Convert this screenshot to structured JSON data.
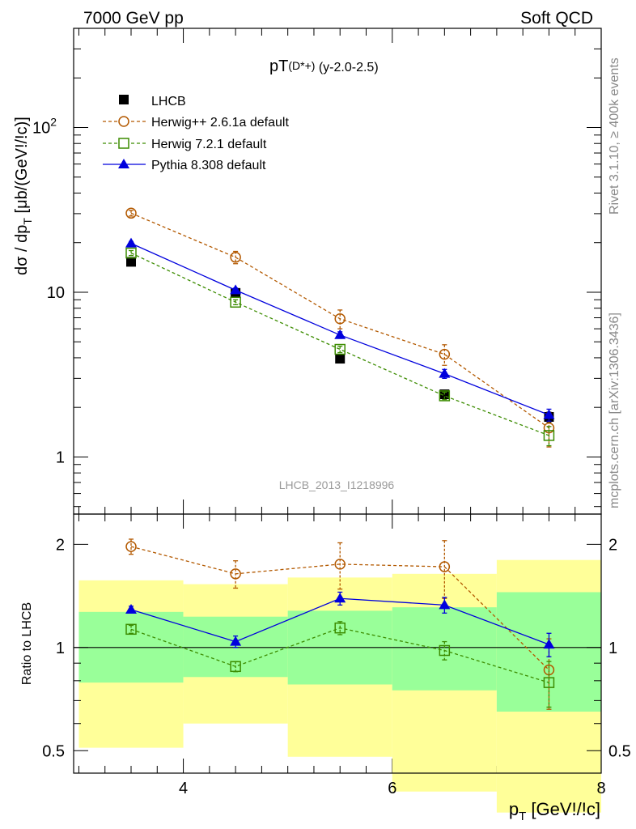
{
  "header": {
    "left": "7000 GeV pp",
    "right": "Soft QCD"
  },
  "side_text": {
    "rivet": "Rivet 3.1.10, ≥ 400k events",
    "source": "mcplots.cern.ch [arXiv:1306.3436]"
  },
  "watermark": "LHCB_2013_I1218996",
  "colors": {
    "lhcb": "#000000",
    "herwigpp": "#b35900",
    "herwig7": "#3c8c00",
    "pythia": "#0000dd",
    "band_outer": "#ffff99",
    "band_inner": "#99ff99"
  },
  "chart_data": [
    {
      "type": "line",
      "title": "pT(D*+) (y-2.0-2.5)",
      "title_main": "pT",
      "title_sub": "(D*+)",
      "title_rest": " (y-2.0-2.5)",
      "ylabel": "dσ / dp_T [μb/(GeV!/!c)]",
      "ylabel_a": "dσ / dp",
      "ylabel_sub": "T",
      "ylabel_b": " [μb/(GeV!/!c)]",
      "yscale": "log",
      "xlim": [
        2.95,
        8.0
      ],
      "ylim": [
        0.45,
        400
      ],
      "yticks": [
        {
          "v": 1,
          "label": "1"
        },
        {
          "v": 10,
          "label": "10"
        },
        {
          "v": 100,
          "label": "10",
          "sup": "2"
        }
      ],
      "legend_position": "top-left",
      "series": [
        {
          "name": "LHCB",
          "key": "lhcb",
          "marker": "square-filled",
          "line": "none",
          "x": [
            3.5,
            4.5,
            5.5,
            6.5,
            7.5
          ],
          "y": [
            15.3,
            9.9,
            3.95,
            2.4,
            1.75
          ],
          "err": [
            0,
            0,
            0,
            0,
            0.12
          ]
        },
        {
          "name": "Herwig++ 2.6.1a default",
          "key": "herwigpp",
          "marker": "circle-open",
          "line": "dashed",
          "x": [
            3.5,
            4.5,
            5.5,
            6.5,
            7.5
          ],
          "y": [
            30.2,
            16.3,
            6.9,
            4.2,
            1.5
          ],
          "err": [
            1.2,
            1.4,
            0.9,
            0.6,
            0.35
          ]
        },
        {
          "name": "Herwig 7.2.1 default",
          "key": "herwig7",
          "marker": "square-open",
          "line": "dashed",
          "x": [
            3.5,
            4.5,
            5.5,
            6.5,
            7.5
          ],
          "y": [
            17.3,
            8.7,
            4.5,
            2.35,
            1.35
          ],
          "err": [
            0.6,
            0.3,
            0.2,
            0.12,
            0.18
          ]
        },
        {
          "name": "Pythia 8.308 default",
          "key": "pythia",
          "marker": "triangle-filled",
          "line": "solid",
          "x": [
            3.5,
            4.5,
            5.5,
            6.5,
            7.5
          ],
          "y": [
            19.8,
            10.3,
            5.5,
            3.2,
            1.8
          ],
          "err": [
            0.5,
            0.3,
            0.25,
            0.2,
            0.15
          ]
        }
      ]
    },
    {
      "type": "line",
      "ylabel": "Ratio to LHCB",
      "xlabel": "p_T [GeV!/!c]",
      "xlabel_a": "p",
      "xlabel_sub": "T",
      "xlabel_b": " [GeV!/!c]",
      "yscale": "log",
      "xlim": [
        2.95,
        8.0
      ],
      "ylim": [
        0.43,
        2.45
      ],
      "xticks": [
        4,
        6,
        8
      ],
      "yticks": [
        {
          "v": 0.5,
          "label": "0.5"
        },
        {
          "v": 1,
          "label": "1"
        },
        {
          "v": 2,
          "label": "2"
        }
      ],
      "bands": [
        {
          "x0": 3.0,
          "x1": 4.0,
          "outer": [
            0.51,
            1.57
          ],
          "inner": [
            0.79,
            1.27
          ]
        },
        {
          "x0": 4.0,
          "x1": 5.0,
          "outer": [
            0.6,
            1.53
          ],
          "inner": [
            0.82,
            1.23
          ]
        },
        {
          "x0": 5.0,
          "x1": 6.0,
          "outer": [
            0.48,
            1.6
          ],
          "inner": [
            0.78,
            1.28
          ]
        },
        {
          "x0": 6.0,
          "x1": 7.0,
          "outer": [
            0.38,
            1.64
          ],
          "inner": [
            0.75,
            1.31
          ]
        },
        {
          "x0": 7.0,
          "x1": 8.0,
          "outer": [
            0.33,
            1.8
          ],
          "inner": [
            0.65,
            1.45
          ]
        }
      ],
      "series": [
        {
          "name": "Herwig++ 2.6.1a default",
          "key": "herwigpp",
          "marker": "circle-open",
          "line": "dashed",
          "x": [
            3.5,
            4.5,
            5.5,
            6.5,
            7.5
          ],
          "y": [
            1.97,
            1.64,
            1.75,
            1.72,
            0.86
          ],
          "err": [
            0.1,
            0.15,
            0.27,
            0.33,
            0.2
          ]
        },
        {
          "name": "Herwig 7.2.1 default",
          "key": "herwig7",
          "marker": "square-open",
          "line": "dashed",
          "x": [
            3.5,
            4.5,
            5.5,
            6.5,
            7.5
          ],
          "y": [
            1.13,
            0.88,
            1.14,
            0.98,
            0.79
          ],
          "err": [
            0.03,
            0.03,
            0.05,
            0.06,
            0.12
          ]
        },
        {
          "name": "Pythia 8.308 default",
          "key": "pythia",
          "marker": "triangle-filled",
          "line": "solid",
          "x": [
            3.5,
            4.5,
            5.5,
            6.5,
            7.5
          ],
          "y": [
            1.29,
            1.04,
            1.39,
            1.33,
            1.02
          ],
          "err": [
            0.03,
            0.04,
            0.06,
            0.07,
            0.08
          ]
        }
      ]
    }
  ]
}
